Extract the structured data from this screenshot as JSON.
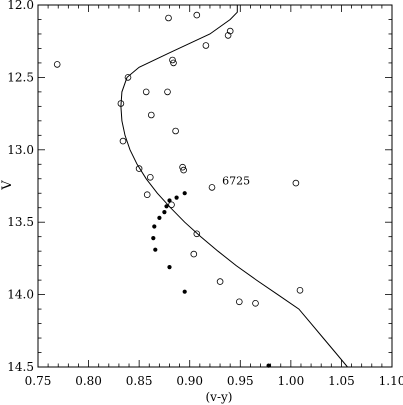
{
  "chart_data": {
    "type": "scatter",
    "title": "",
    "xlabel": "(v-y)",
    "ylabel": "V",
    "xlim": [
      0.75,
      1.1
    ],
    "ylim": [
      14.5,
      12.0
    ],
    "y_inverted": true,
    "grid": false,
    "legend": "none",
    "x_ticks": [
      0.75,
      0.8,
      0.85,
      0.9,
      0.95,
      1.0,
      1.05,
      1.1
    ],
    "x_tick_labels": [
      "0.75",
      "0.80",
      "0.85",
      "0.90",
      "0.95",
      "1.00",
      "1.05",
      "1.10"
    ],
    "y_ticks": [
      12.0,
      12.5,
      13.0,
      13.5,
      14.0,
      14.5
    ],
    "y_tick_labels": [
      "12.0",
      "12.5",
      "13.0",
      "13.5",
      "14.0",
      "14.5"
    ],
    "annotations": [
      {
        "text": "6725",
        "x": 0.932,
        "y": 13.24
      }
    ],
    "series": [
      {
        "marker": "open-circle",
        "points": [
          [
            0.879,
            12.09
          ],
          [
            0.907,
            12.07
          ],
          [
            0.938,
            12.21
          ],
          [
            0.94,
            12.18
          ],
          [
            0.883,
            12.38
          ],
          [
            0.884,
            12.4
          ],
          [
            0.916,
            12.28
          ],
          [
            0.769,
            12.41
          ],
          [
            0.839,
            12.5
          ],
          [
            0.857,
            12.6
          ],
          [
            0.878,
            12.6
          ],
          [
            0.832,
            12.68
          ],
          [
            0.862,
            12.76
          ],
          [
            0.886,
            12.87
          ],
          [
            0.834,
            12.94
          ],
          [
            0.85,
            13.13
          ],
          [
            0.893,
            13.12
          ],
          [
            0.894,
            13.14
          ],
          [
            0.861,
            13.19
          ],
          [
            0.858,
            13.31
          ],
          [
            0.882,
            13.38
          ],
          [
            0.922,
            13.26
          ],
          [
            1.005,
            13.23
          ],
          [
            0.907,
            13.58
          ],
          [
            0.904,
            13.72
          ],
          [
            0.93,
            13.91
          ],
          [
            1.009,
            13.97
          ],
          [
            0.949,
            14.05
          ],
          [
            0.965,
            14.06
          ]
        ]
      },
      {
        "marker": "filled-circle",
        "points": [
          [
            0.895,
            13.3
          ],
          [
            0.887,
            13.33
          ],
          [
            0.88,
            13.35
          ],
          [
            0.877,
            13.39
          ],
          [
            0.875,
            13.43
          ],
          [
            0.87,
            13.47
          ],
          [
            0.865,
            13.53
          ],
          [
            0.864,
            13.61
          ],
          [
            0.866,
            13.69
          ],
          [
            0.88,
            13.81
          ],
          [
            0.895,
            13.98
          ],
          [
            0.978,
            14.49
          ]
        ]
      }
    ],
    "curve": [
      [
        0.947,
        12.0
      ],
      [
        0.947,
        12.05
      ],
      [
        0.94,
        12.1
      ],
      [
        0.92,
        12.2
      ],
      [
        0.88,
        12.33
      ],
      [
        0.85,
        12.43
      ],
      [
        0.838,
        12.5
      ],
      [
        0.833,
        12.6
      ],
      [
        0.832,
        12.7
      ],
      [
        0.833,
        12.8
      ],
      [
        0.836,
        12.9
      ],
      [
        0.841,
        13.0
      ],
      [
        0.848,
        13.1
      ],
      [
        0.857,
        13.2
      ],
      [
        0.868,
        13.3
      ],
      [
        0.881,
        13.4
      ],
      [
        0.895,
        13.5
      ],
      [
        0.911,
        13.6
      ],
      [
        0.928,
        13.7
      ],
      [
        0.946,
        13.8
      ],
      [
        0.966,
        13.9
      ],
      [
        0.987,
        14.0
      ],
      [
        1.008,
        14.1
      ],
      [
        1.02,
        14.2
      ],
      [
        1.032,
        14.3
      ],
      [
        1.044,
        14.4
      ],
      [
        1.056,
        14.5
      ]
    ]
  }
}
